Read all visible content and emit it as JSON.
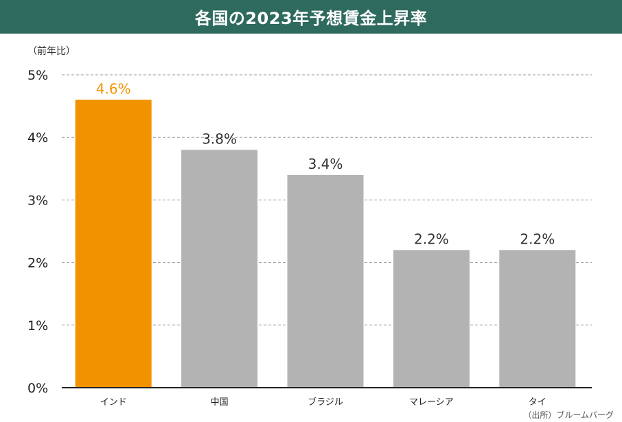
{
  "title": "各国の2023年予想賃金上昇率",
  "unit_label": "（前年比）",
  "source": "（出所）ブルームバーグ",
  "colors": {
    "title_bg": "#2e6a5e",
    "highlight": "#f39200",
    "default_bar": "#b3b3b3",
    "label_default": "#333333"
  },
  "chart_data": {
    "type": "bar",
    "categories": [
      "インド",
      "中国",
      "ブラジル",
      "マレーシア",
      "タイ"
    ],
    "values": [
      4.6,
      3.8,
      3.4,
      2.2,
      2.2
    ],
    "value_labels": [
      "4.6%",
      "3.8%",
      "3.4%",
      "2.2%",
      "2.2%"
    ],
    "highlight_index": 0,
    "yticks": [
      0,
      1,
      2,
      3,
      4,
      5
    ],
    "ytick_labels": [
      "0%",
      "1%",
      "2%",
      "3%",
      "4%",
      "5%"
    ],
    "ylim": [
      0,
      5
    ],
    "grid": "dashed horizontal"
  }
}
